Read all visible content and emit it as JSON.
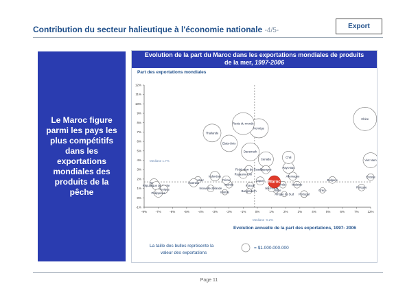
{
  "header": {
    "title": "Contribution du secteur halieutique à l'économie nationale",
    "page_indicator": "-4/5-",
    "export_label": "Export"
  },
  "side_panel": {
    "text": "Le Maroc figure parmi les pays les plus compétitifs dans les exportations mondiales des produits de la pêche"
  },
  "chart_header": {
    "title_line1": "Evolution de la part du Maroc dans les exportations mondiales de produits",
    "title_line2": "de la mer,",
    "title_years": "1997-2006"
  },
  "footer": {
    "page": "Page 11"
  },
  "chart_data": {
    "type": "scatter",
    "ylabel": "Part des exportations mondiales",
    "xlabel": "Evolution annuelle de la part des exportations, 1997- 2006",
    "x_ticks": [
      "-9%",
      "-7%",
      "-6%",
      "-5%",
      "-4%",
      "-3%",
      "-2%",
      "-1%",
      "0%",
      "1%",
      "2%",
      "3%",
      "4%",
      "5%",
      "6%",
      "7%",
      "12%"
    ],
    "y_ticks": [
      "12%",
      "11%",
      "10%",
      "9%",
      "8%",
      "7%",
      "6%",
      "5%",
      "4%",
      "3%",
      "2%",
      "1%",
      "0%",
      "-1%"
    ],
    "median_x_label": "Mediane -0.2%",
    "median_y_label": "Mediane 1.7%",
    "legend_text": "La taille des bulles représente la valeur des exportations",
    "legend_value": "= $1.000.000.000",
    "highlight_color": "#e03a2a",
    "bubbles": [
      {
        "label": "Chine",
        "x": 10.0,
        "y": 8.4
      },
      {
        "label": "Viet Nam",
        "x": 12.0,
        "y": 4.0
      },
      {
        "label": "Ecosse",
        "x": 12.0,
        "y": 2.2
      },
      {
        "label": "Pologne",
        "x": 8.8,
        "y": 1.1
      },
      {
        "label": "Bulgarie",
        "x": 5.3,
        "y": 1.9
      },
      {
        "label": "Grèce",
        "x": 4.6,
        "y": 0.8
      },
      {
        "label": "Portugal",
        "x": 3.3,
        "y": 0.4
      },
      {
        "label": "Malaisie",
        "x": 2.8,
        "y": 1.4
      },
      {
        "label": "Allemagne",
        "x": 2.5,
        "y": 2.3
      },
      {
        "label": "Afrique du Sud",
        "x": 1.9,
        "y": 0.4
      },
      {
        "label": "Namibie",
        "x": 1.3,
        "y": 0.8
      },
      {
        "label": "Inde",
        "x": 1.8,
        "y": 1.4
      },
      {
        "label": "Iles Féroé",
        "x": 1.0,
        "y": 1.0
      },
      {
        "label": "Maroc",
        "x": 1.2,
        "y": 1.7
      },
      {
        "label": "Pays-Bas",
        "x": 2.2,
        "y": 3.2
      },
      {
        "label": "Chili",
        "x": 2.2,
        "y": 4.3
      },
      {
        "label": "Canada",
        "x": 0.6,
        "y": 4.1
      },
      {
        "label": "Norvège",
        "x": 0.1,
        "y": 7.4
      },
      {
        "label": "Espagne",
        "x": 0.6,
        "y": 3.0
      },
      {
        "label": "Fédération de Russie",
        "x": -0.6,
        "y": 3.0
      },
      {
        "label": "Royaume-Uni",
        "x": -1.0,
        "y": 2.5
      },
      {
        "label": "Japon",
        "x": 0.2,
        "y": 1.8
      },
      {
        "label": "France",
        "x": -0.5,
        "y": 1.3
      },
      {
        "label": "Bangladesh",
        "x": -0.6,
        "y": 0.7
      },
      {
        "label": "Islande",
        "x": -2.0,
        "y": 1.4
      },
      {
        "label": "Pérou",
        "x": -2.2,
        "y": 1.9
      },
      {
        "label": "Indonésie",
        "x": -3.0,
        "y": 2.3
      },
      {
        "label": "Nouvelle-Zélande",
        "x": -3.3,
        "y": 1.0
      },
      {
        "label": "Irlande",
        "x": -2.3,
        "y": 0.6
      },
      {
        "label": "Equateur",
        "x": -4.2,
        "y": 1.9
      },
      {
        "label": "Australie",
        "x": -4.5,
        "y": 1.6
      },
      {
        "label": "Taïwan",
        "x": -7.6,
        "y": 1.6
      },
      {
        "label": "République de Corée",
        "x": -7.3,
        "y": 1.3
      },
      {
        "label": "Mexique",
        "x": -6.6,
        "y": 0.9
      },
      {
        "label": "Philippines",
        "x": -7.0,
        "y": 0.5
      },
      {
        "label": "Etats-Unis",
        "x": -2.0,
        "y": 5.8
      },
      {
        "label": "Danemark",
        "x": -0.5,
        "y": 4.9
      },
      {
        "label": "Thaïlande",
        "x": -3.2,
        "y": 6.9
      },
      {
        "label": "Reste du monde",
        "x": -1.0,
        "y": 7.9
      }
    ]
  }
}
